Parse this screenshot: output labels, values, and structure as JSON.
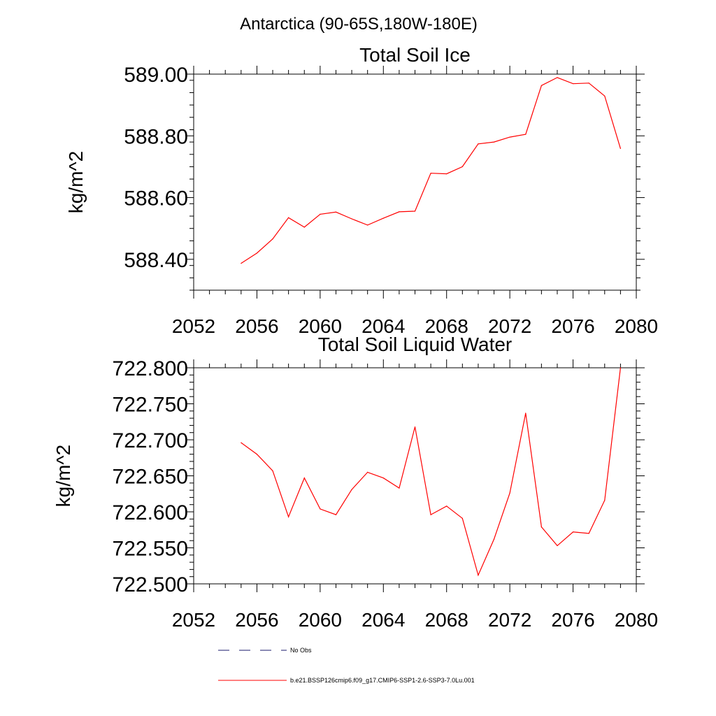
{
  "figure": {
    "region_title": "Antarctica (90-65S,180W-180E)"
  },
  "chart_data": [
    {
      "type": "line",
      "title": "Total Soil Ice",
      "xlabel": "",
      "ylabel": "kg/m^2",
      "xlim": [
        2052,
        2080
      ],
      "ylim": [
        588.3,
        589.0
      ],
      "xticks": [
        2052,
        2056,
        2060,
        2064,
        2068,
        2072,
        2076,
        2080
      ],
      "yticks": [
        588.4,
        588.6,
        588.8,
        589.0
      ],
      "ytick_labels": [
        "588.40",
        "588.60",
        "588.80",
        "589.00"
      ],
      "grid": false,
      "series": [
        {
          "name": "b.e21.BSSP126cmip6.f09_g17.CMIP6-SSP1-2.6-SSP3-7.0Lu.001",
          "color": "#ff0000",
          "x": [
            2055,
            2056,
            2057,
            2058,
            2059,
            2060,
            2061,
            2062,
            2063,
            2064,
            2065,
            2066,
            2067,
            2068,
            2069,
            2070,
            2071,
            2072,
            2073,
            2074,
            2075,
            2076,
            2077,
            2078,
            2079
          ],
          "y": [
            588.387,
            588.42,
            588.466,
            588.535,
            588.504,
            588.546,
            588.553,
            588.531,
            588.511,
            588.533,
            588.554,
            588.556,
            588.679,
            588.677,
            588.7,
            588.774,
            588.78,
            588.796,
            588.805,
            588.963,
            588.989,
            588.969,
            588.971,
            588.929,
            588.759
          ]
        }
      ]
    },
    {
      "type": "line",
      "title": "Total Soil Liquid Water",
      "xlabel": "",
      "ylabel": "kg/m^2",
      "xlim": [
        2052,
        2080
      ],
      "ylim": [
        722.5,
        722.8
      ],
      "xticks": [
        2052,
        2056,
        2060,
        2064,
        2068,
        2072,
        2076,
        2080
      ],
      "yticks": [
        722.5,
        722.55,
        722.6,
        722.65,
        722.7,
        722.75,
        722.8
      ],
      "ytick_labels": [
        "722.500",
        "722.550",
        "722.600",
        "722.650",
        "722.700",
        "722.750",
        "722.800"
      ],
      "grid": false,
      "series": [
        {
          "name": "b.e21.BSSP126cmip6.f09_g17.CMIP6-SSP1-2.6-SSP3-7.0Lu.001",
          "color": "#ff0000",
          "x": [
            2055,
            2056,
            2057,
            2058,
            2059,
            2060,
            2061,
            2062,
            2063,
            2064,
            2065,
            2066,
            2067,
            2068,
            2069,
            2070,
            2071,
            2072,
            2073,
            2074,
            2075,
            2076,
            2077,
            2078,
            2079
          ],
          "y": [
            722.696,
            722.68,
            722.657,
            722.593,
            722.647,
            722.604,
            722.596,
            722.631,
            722.655,
            722.647,
            722.633,
            722.718,
            722.596,
            722.608,
            722.591,
            722.512,
            722.562,
            722.626,
            722.737,
            722.579,
            722.553,
            722.572,
            722.57,
            722.616,
            722.8
          ]
        }
      ]
    }
  ],
  "legend": {
    "placement": "bottom",
    "items": [
      {
        "label": "No Obs",
        "style": "dashed",
        "color": "#1a1a6e"
      },
      {
        "label": "b.e21.BSSP126cmip6.f09_g17.CMIP6-SSP1-2.6-SSP3-7.0Lu.001",
        "style": "solid",
        "color": "#ff0000"
      }
    ]
  }
}
